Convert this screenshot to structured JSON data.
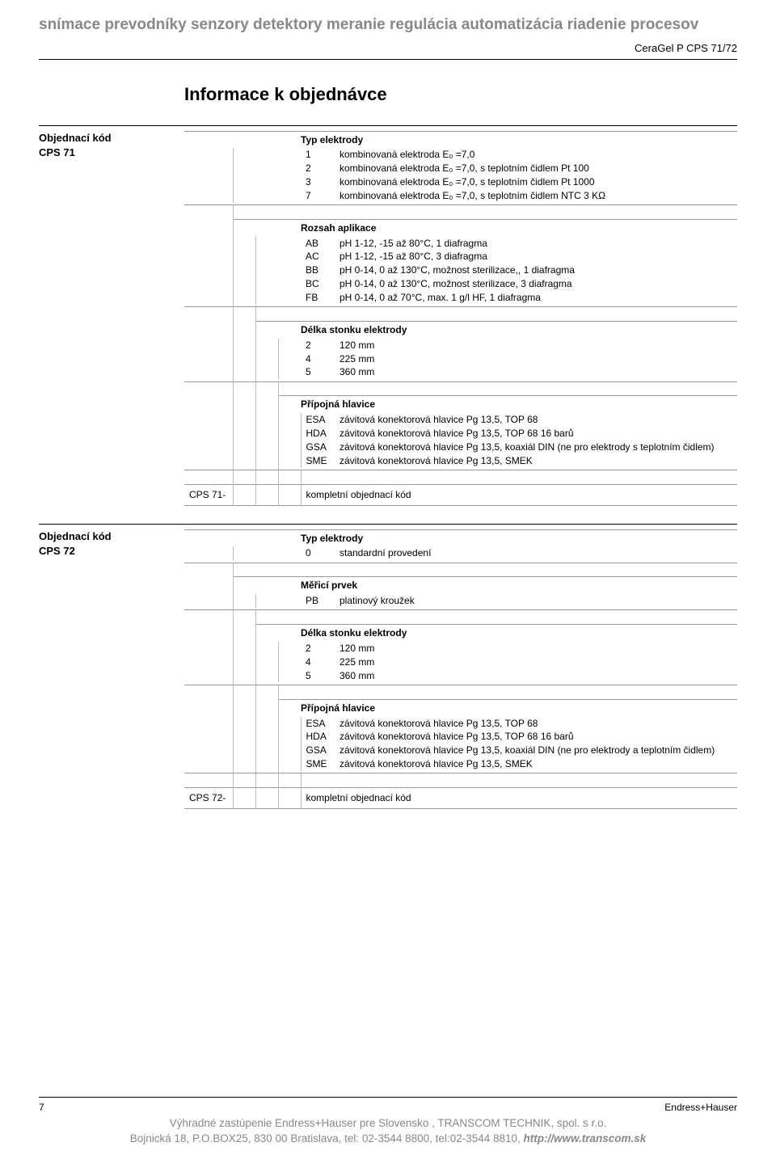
{
  "banner": "snímace prevodníky senzory detektory meranie regulácia automatizácia riadenie procesov",
  "product": "CeraGel P CPS 71/72",
  "title": "Informace k objednávce",
  "sections": [
    {
      "label1": "Objednací kód",
      "label2": "CPS 71",
      "blocks": [
        {
          "indent": 0,
          "header": "Typ elektrody",
          "rows": [
            {
              "code": "1",
              "desc": "kombinovaná elektroda E₀ =7,0"
            },
            {
              "code": "2",
              "desc": "kombinovaná elektroda E₀ =7,0, s teplotním čidlem Pt 100"
            },
            {
              "code": "3",
              "desc": "kombinovaná elektroda E₀ =7,0, s teplotním čidlem Pt 1000"
            },
            {
              "code": "7",
              "desc": "kombinovaná elektroda E₀ =7,0, s teplotním čidlem NTC 3 KΩ"
            }
          ]
        },
        {
          "indent": 1,
          "header": "Rozsah aplikace",
          "rows": [
            {
              "code": "AB",
              "desc": "pH 1-12, -15 až 80°C, 1 diafragma"
            },
            {
              "code": "AC",
              "desc": "pH 1-12, -15 až 80°C, 3 diafragma"
            },
            {
              "code": "BB",
              "desc": "pH 0-14, 0 až 130°C, možnost sterilizace,, 1 diafragma"
            },
            {
              "code": "BC",
              "desc": "pH 0-14, 0 až 130°C, možnost sterilizace, 3 diafragma"
            },
            {
              "code": "FB",
              "desc": "pH 0-14, 0 až 70°C, max. 1 g/l HF, 1 diafragma"
            }
          ]
        },
        {
          "indent": 2,
          "header": "Délka stonku elektrody",
          "rows": [
            {
              "code": "2",
              "desc": "120 mm"
            },
            {
              "code": "4",
              "desc": "225 mm"
            },
            {
              "code": "5",
              "desc": "360 mm"
            }
          ]
        },
        {
          "indent": 3,
          "header": "Přípojná hlavice",
          "rows": [
            {
              "code": "ESA",
              "desc": "závitová konektorová hlavice Pg 13,5, TOP 68"
            },
            {
              "code": "HDA",
              "desc": "závitová konektorová hlavice Pg 13,5, TOP 68 16 barů"
            },
            {
              "code": "GSA",
              "desc": "závitová konektorová hlavice Pg 13,5, koaxiál DIN (ne pro elektrody s teplotním čidlem)"
            },
            {
              "code": "SME",
              "desc": "závitová konektorová hlavice Pg 13,5, SMEK"
            }
          ]
        }
      ],
      "final": {
        "code": "CPS 71-",
        "desc": "kompletní objednací kód"
      }
    },
    {
      "label1": "Objednací kód",
      "label2": "CPS 72",
      "blocks": [
        {
          "indent": 0,
          "header": "Typ elektrody",
          "rows": [
            {
              "code": "0",
              "desc": "standardní provedení"
            }
          ]
        },
        {
          "indent": 1,
          "header": "Měřicí prvek",
          "rows": [
            {
              "code": "PB",
              "desc": "platinový kroužek"
            }
          ]
        },
        {
          "indent": 2,
          "header": "Délka stonku elektrody",
          "rows": [
            {
              "code": "2",
              "desc": "120 mm"
            },
            {
              "code": "4",
              "desc": "225 mm"
            },
            {
              "code": "5",
              "desc": "360 mm"
            }
          ]
        },
        {
          "indent": 3,
          "header": "Přípojná hlavice",
          "rows": [
            {
              "code": "ESA",
              "desc": "závitová konektorová hlavice Pg 13,5, TOP 68"
            },
            {
              "code": "HDA",
              "desc": "závitová konektorová hlavice Pg 13,5, TOP 68 16 barů"
            },
            {
              "code": "GSA",
              "desc": "závitová konektorová hlavice Pg 13,5, koaxiál DIN (ne pro elektrody a teplotním čidlem)"
            },
            {
              "code": "SME",
              "desc": "závitová konektorová hlavice Pg 13,5, SMEK"
            }
          ]
        }
      ],
      "final": {
        "code": "CPS 72-",
        "desc": "kompletní objednací kód"
      }
    }
  ],
  "footer": {
    "page": "7",
    "brand": "Endress+Hauser",
    "line1": "Výhradné zastúpenie Endress+Hauser pre Slovensko , TRANSCOM TECHNIK, spol. s r.o.",
    "line2a": "Bojnická 18, P.O.BOX25, 830 00 Bratislava, tel: 02-3544 8800, tel:02-3544 8810, ",
    "line2b": "http://www.transcom.sk"
  }
}
